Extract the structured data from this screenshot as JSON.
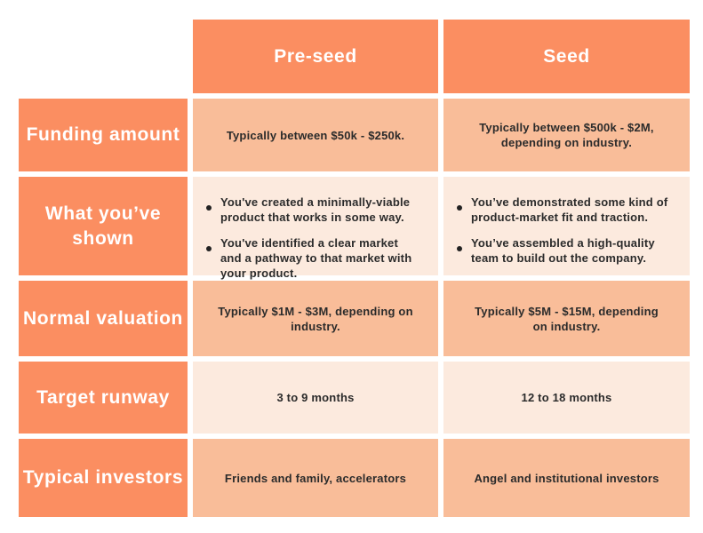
{
  "colors": {
    "header_orange": "#FB8E61",
    "cell_medium_peach": "#F9BD99",
    "cell_light_peach": "#FCEADE",
    "text_dark": "#2B2B2B",
    "text_light": "#FFFFFF"
  },
  "columns": [
    {
      "label": "Pre-seed"
    },
    {
      "label": "Seed"
    }
  ],
  "rows": [
    {
      "label": "Funding amount",
      "preseed": "Typically between $50k - $250k.",
      "seed": "Typically between $500k - $2M,\ndepending on industry."
    },
    {
      "label": "What you’ve\nshown",
      "preseed_bullets": [
        "You've created a minimally-viable product that works in some way.",
        "You've identified a clear market and a pathway to that market with your product."
      ],
      "seed_bullets": [
        "You’ve demonstrated some kind of product-market fit and traction.",
        "You’ve assembled a high-quality team to build out the company."
      ]
    },
    {
      "label": "Normal valuation",
      "preseed": "Typically $1M - $3M, depending on\nindustry.",
      "seed": "Typically $5M - $15M, depending\non industry."
    },
    {
      "label": "Target runway",
      "preseed": "3 to 9 months",
      "seed": "12 to 18 months"
    },
    {
      "label": "Typical investors",
      "preseed": "Friends and family, accelerators",
      "seed": "Angel and institutional investors"
    }
  ],
  "chart_data": {
    "type": "table",
    "columns": [
      "",
      "Pre-seed",
      "Seed"
    ],
    "rows": [
      [
        "Funding amount",
        "Typically between $50k - $250k.",
        "Typically between $500k - $2M, depending on industry."
      ],
      [
        "What you’ve shown",
        "You've created a minimally-viable product that works in some way. | You've identified a clear market and a pathway to that market with your product.",
        "You’ve demonstrated some kind of product-market fit and traction. | You’ve assembled a high-quality team to build out the company."
      ],
      [
        "Normal valuation",
        "Typically $1M - $3M, depending on industry.",
        "Typically $5M - $15M, depending on industry."
      ],
      [
        "Target runway",
        "3 to 9 months",
        "12 to 18 months"
      ],
      [
        "Typical investors",
        "Friends and family, accelerators",
        "Angel and institutional investors"
      ]
    ],
    "layout": "comparison table, orange header row and header column, alternating peach/light-peach body cells, white gaps between cells"
  }
}
